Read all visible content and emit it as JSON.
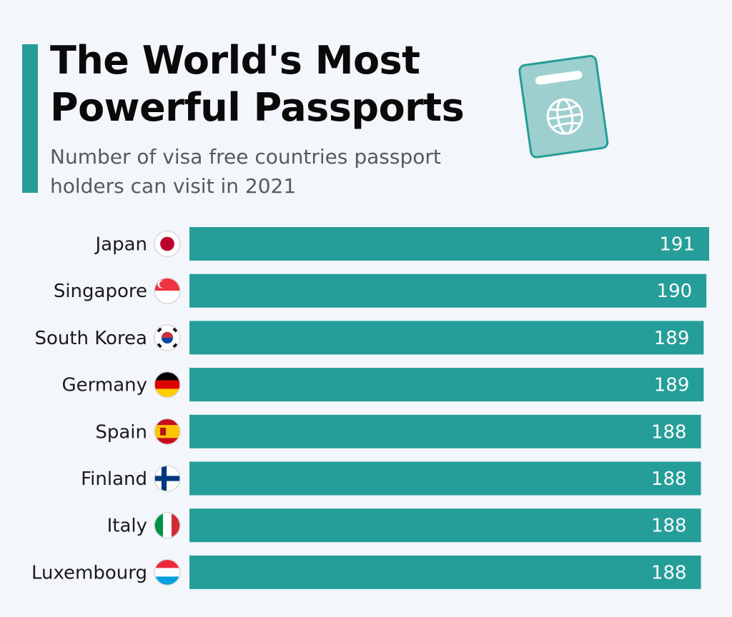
{
  "header": {
    "title": "The World's Most Powerful Passports",
    "subtitle": "Number of visa free countries passport holders can visit in 2021"
  },
  "colors": {
    "accent": "#259e99",
    "bar": "#259e99",
    "background": "#f3f7fc",
    "icon_fill": "#9ecfcf"
  },
  "icons": [
    "passport-icon",
    "globe-icon"
  ],
  "chart_data": {
    "type": "bar",
    "orientation": "horizontal",
    "categories": [
      "Japan",
      "Singapore",
      "South Korea",
      "Germany",
      "Spain",
      "Finland",
      "Italy",
      "Luxembourg"
    ],
    "values": [
      191,
      190,
      189,
      189,
      188,
      188,
      188,
      188
    ],
    "flags": [
      "japan-flag-icon",
      "singapore-flag-icon",
      "south-korea-flag-icon",
      "germany-flag-icon",
      "spain-flag-icon",
      "finland-flag-icon",
      "italy-flag-icon",
      "luxembourg-flag-icon"
    ],
    "title": "The World's Most Powerful Passports",
    "subtitle": "Number of visa free countries passport holders can visit in 2021",
    "xlabel": "",
    "ylabel": "",
    "xlim": [
      0,
      191
    ],
    "grid": false,
    "legend": "none",
    "data_labels": "inside-end"
  }
}
